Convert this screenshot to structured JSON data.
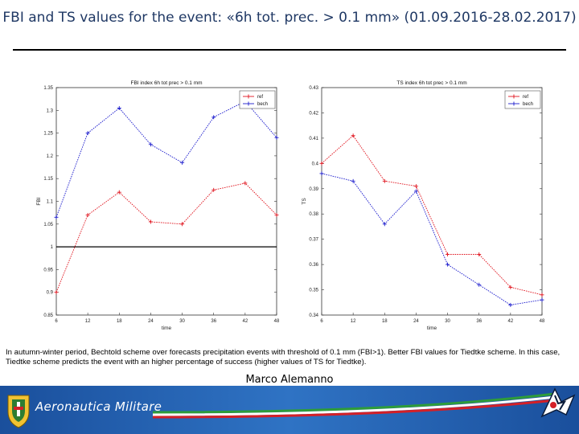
{
  "slide": {
    "title": "FBI and TS values for the event: «6h tot. prec. > 0.1 mm» (01.09.2016-28.02.2017)",
    "caption": "In autumn-winter period, Bechtold scheme over forecasts precipitation events with threshold of 0.1 mm (FBI>1). Better FBI values for Tiedtke scheme. In this case, Tiedtke scheme predicts the event with an higher percentage of success (higher values of TS for Tiedtke).",
    "author": "Marco Alemanno",
    "footer_brand": "Aeronautica Militare"
  },
  "colors": {
    "ref": "#e0141e",
    "bech": "#1c1ccd",
    "title": "#1f3864",
    "footer": "#1e5aa8"
  },
  "icons": {
    "footer_emblem_left": "military-crest-icon",
    "footer_emblem_right": "eagle-emblem-icon"
  },
  "chart_data": [
    {
      "type": "line",
      "title": "FBI index 6h tot prec > 0.1 mm",
      "xlabel": "time",
      "ylabel": "FBI",
      "x": [
        6,
        12,
        18,
        24,
        30,
        36,
        42,
        48
      ],
      "xticks": [
        "6",
        "12",
        "18",
        "24",
        "30",
        "36",
        "42",
        "48"
      ],
      "ylim": [
        0.85,
        1.35
      ],
      "yticks": [
        "0.85",
        "0.9",
        "0.95",
        "1",
        "1.05",
        "1.1",
        "1.15",
        "1.2",
        "1.25",
        "1.3",
        "1.35"
      ],
      "reference_line": 1,
      "legend_position": "top-right",
      "series": [
        {
          "name": "ref",
          "values": [
            0.9,
            1.07,
            1.12,
            1.055,
            1.05,
            1.125,
            1.14,
            1.07
          ]
        },
        {
          "name": "bech",
          "values": [
            1.065,
            1.25,
            1.305,
            1.225,
            1.185,
            1.285,
            1.32,
            1.24
          ]
        }
      ]
    },
    {
      "type": "line",
      "title": "TS index 6h tot prec > 0.1 mm",
      "xlabel": "time",
      "ylabel": "TS",
      "x": [
        6,
        12,
        18,
        24,
        30,
        36,
        42,
        48
      ],
      "xticks": [
        "6",
        "12",
        "18",
        "24",
        "30",
        "36",
        "42",
        "48"
      ],
      "ylim": [
        0.34,
        0.43
      ],
      "yticks": [
        "0.34",
        "0.35",
        "0.36",
        "0.37",
        "0.38",
        "0.39",
        "0.4",
        "0.41",
        "0.42",
        "0.43"
      ],
      "legend_position": "top-right",
      "series": [
        {
          "name": "ref",
          "values": [
            0.4,
            0.411,
            0.393,
            0.391,
            0.364,
            0.364,
            0.351,
            0.348
          ]
        },
        {
          "name": "bech",
          "values": [
            0.396,
            0.393,
            0.376,
            0.389,
            0.36,
            0.352,
            0.344,
            0.346
          ]
        }
      ]
    }
  ]
}
